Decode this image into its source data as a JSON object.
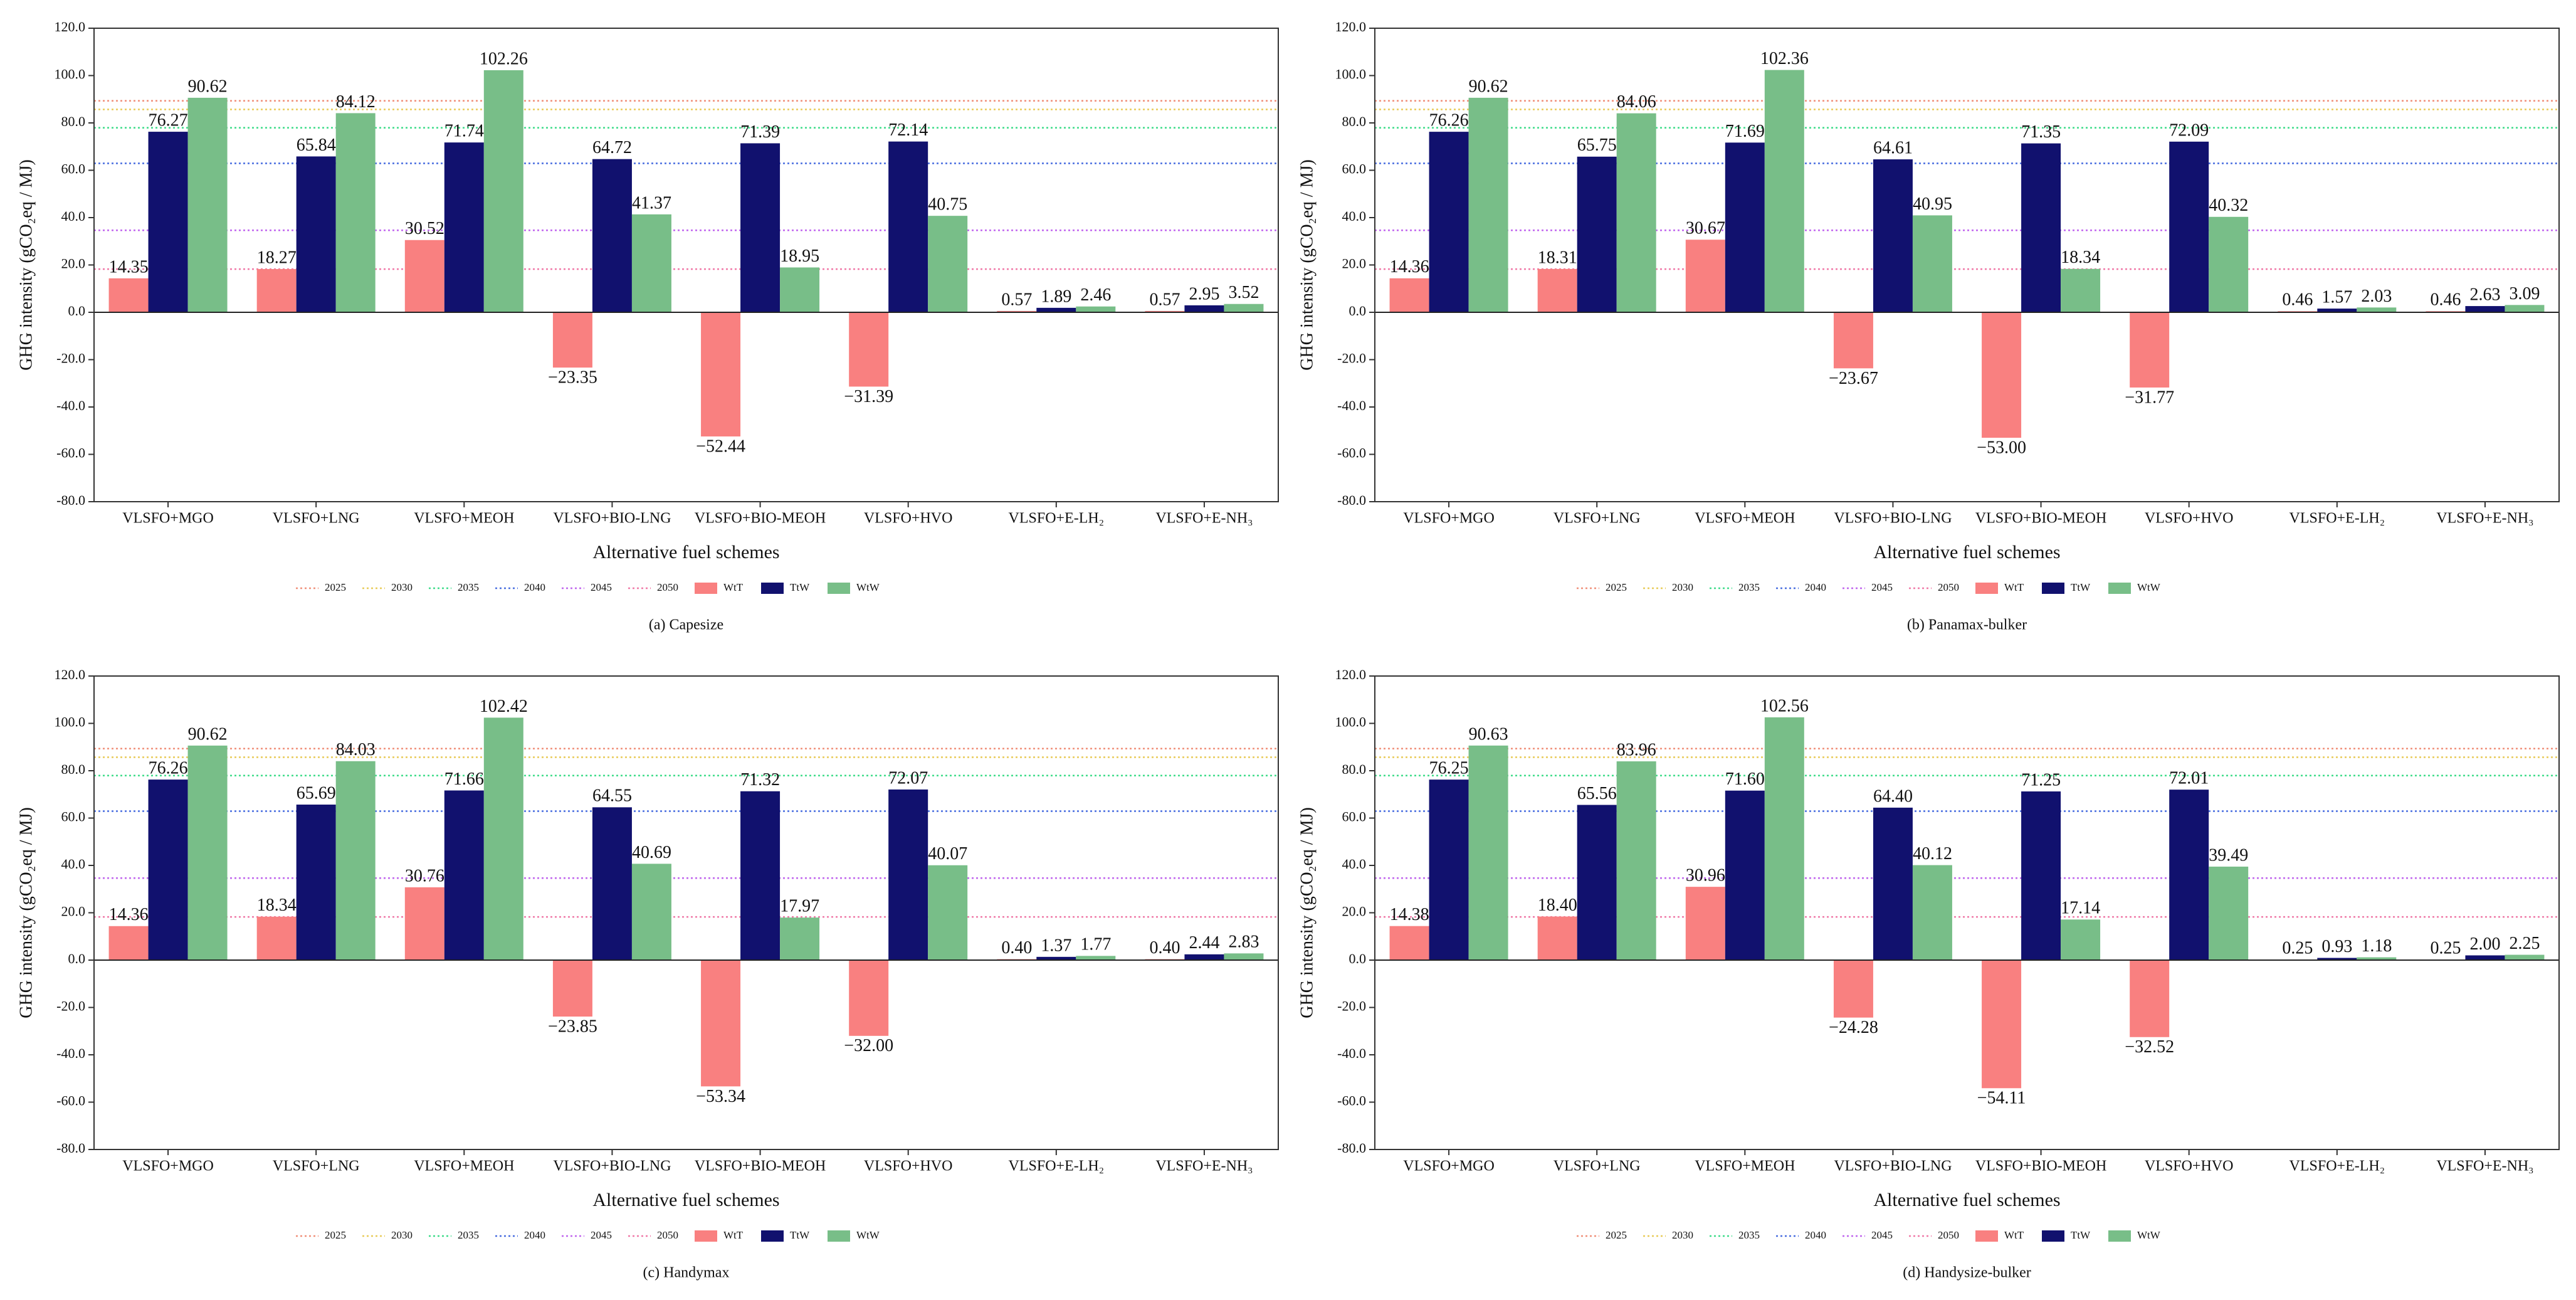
{
  "chart_data": [
    {
      "type": "bar",
      "caption": "(a) Capesize",
      "x_label": "Alternative fuel schemes",
      "y_label": "GHG intensity (gCO₂eq / MJ)",
      "categories": [
        "VLSFO+MGO",
        "VLSFO+LNG",
        "VLSFO+MEOH",
        "VLSFO+BIO-LNG",
        "VLSFO+BIO-MEOH",
        "VLSFO+HVO",
        "VLSFO+E-LH₂",
        "VLSFO+E-NH₃"
      ],
      "ylim": [
        -80,
        120
      ],
      "yticks": [
        {
          "value": -80,
          "label": "-80.0"
        },
        {
          "value": -60,
          "label": "-60.0"
        },
        {
          "value": -40,
          "label": "-40.0"
        },
        {
          "value": -20,
          "label": "-20.0"
        },
        {
          "value": 0,
          "label": "0.0"
        },
        {
          "value": 20,
          "label": "20.0"
        },
        {
          "value": 40,
          "label": "40.0"
        },
        {
          "value": 60,
          "label": "60.0"
        },
        {
          "value": 80,
          "label": "80.0"
        },
        {
          "value": 100,
          "label": "100.0"
        },
        {
          "value": 120,
          "label": "120.0"
        }
      ],
      "ref_lines": [
        {
          "name": "2025",
          "color": "#f0907a",
          "value": 89.34
        },
        {
          "name": "2030",
          "color": "#e8cc5a",
          "value": 85.69
        },
        {
          "name": "2035",
          "color": "#3fdc8a",
          "value": 77.94
        },
        {
          "name": "2040",
          "color": "#4a6fe0",
          "value": 62.9
        },
        {
          "name": "2045",
          "color": "#c066ee",
          "value": 34.64
        },
        {
          "name": "2050",
          "color": "#f07aa8",
          "value": 18.23
        }
      ],
      "series": [
        {
          "name": "WtT",
          "color": "#f98080",
          "values": [
            14.35,
            18.27,
            30.52,
            -23.35,
            -52.44,
            -31.39,
            0.57,
            0.57
          ],
          "value_labels": [
            "14.35",
            "18.27",
            "30.52",
            "−23.35",
            "−52.44",
            "−31.39",
            "0.57",
            "0.57"
          ]
        },
        {
          "name": "TtW",
          "color": "#11116e",
          "values": [
            76.27,
            65.84,
            71.74,
            64.72,
            71.39,
            72.14,
            1.89,
            2.95
          ],
          "value_labels": [
            "76.27",
            "65.84",
            "71.74",
            "64.72",
            "71.39",
            "72.14",
            "1.89",
            "2.95"
          ]
        },
        {
          "name": "WtW",
          "color": "#78be88",
          "values": [
            90.62,
            84.12,
            102.26,
            41.37,
            18.95,
            40.75,
            2.46,
            3.52
          ],
          "value_labels": [
            "90.62",
            "84.12",
            "102.26",
            "41.37",
            "18.95",
            "40.75",
            "2.46",
            "3.52"
          ]
        }
      ]
    },
    {
      "type": "bar",
      "caption": "(b) Panamax-bulker",
      "x_label": "Alternative fuel schemes",
      "y_label": "GHG intensity (gCO₂eq / MJ)",
      "categories": [
        "VLSFO+MGO",
        "VLSFO+LNG",
        "VLSFO+MEOH",
        "VLSFO+BIO-LNG",
        "VLSFO+BIO-MEOH",
        "VLSFO+HVO",
        "VLSFO+E-LH₂",
        "VLSFO+E-NH₃"
      ],
      "ylim": [
        -80,
        120
      ],
      "yticks": [
        {
          "value": -80,
          "label": "-80.0"
        },
        {
          "value": -60,
          "label": "-60.0"
        },
        {
          "value": -40,
          "label": "-40.0"
        },
        {
          "value": -20,
          "label": "-20.0"
        },
        {
          "value": 0,
          "label": "0.0"
        },
        {
          "value": 20,
          "label": "20.0"
        },
        {
          "value": 40,
          "label": "40.0"
        },
        {
          "value": 60,
          "label": "60.0"
        },
        {
          "value": 80,
          "label": "80.0"
        },
        {
          "value": 100,
          "label": "100.0"
        },
        {
          "value": 120,
          "label": "120.0"
        }
      ],
      "ref_lines": [
        {
          "name": "2025",
          "color": "#f0907a",
          "value": 89.34
        },
        {
          "name": "2030",
          "color": "#e8cc5a",
          "value": 85.69
        },
        {
          "name": "2035",
          "color": "#3fdc8a",
          "value": 77.94
        },
        {
          "name": "2040",
          "color": "#4a6fe0",
          "value": 62.9
        },
        {
          "name": "2045",
          "color": "#c066ee",
          "value": 34.64
        },
        {
          "name": "2050",
          "color": "#f07aa8",
          "value": 18.23
        }
      ],
      "series": [
        {
          "name": "WtT",
          "color": "#f98080",
          "values": [
            14.36,
            18.31,
            30.67,
            -23.67,
            -53.0,
            -31.77,
            0.46,
            0.46
          ],
          "value_labels": [
            "14.36",
            "18.31",
            "30.67",
            "−23.67",
            "−53.00",
            "−31.77",
            "0.46",
            "0.46"
          ]
        },
        {
          "name": "TtW",
          "color": "#11116e",
          "values": [
            76.26,
            65.75,
            71.69,
            64.61,
            71.35,
            72.09,
            1.57,
            2.63
          ],
          "value_labels": [
            "76.26",
            "65.75",
            "71.69",
            "64.61",
            "71.35",
            "72.09",
            "1.57",
            "2.63"
          ]
        },
        {
          "name": "WtW",
          "color": "#78be88",
          "values": [
            90.62,
            84.06,
            102.36,
            40.95,
            18.34,
            40.32,
            2.03,
            3.09
          ],
          "value_labels": [
            "90.62",
            "84.06",
            "102.36",
            "40.95",
            "18.34",
            "40.32",
            "2.03",
            "3.09"
          ]
        }
      ]
    },
    {
      "type": "bar",
      "caption": "(c) Handymax",
      "x_label": "Alternative fuel schemes",
      "y_label": "GHG intensity (gCO₂eq / MJ)",
      "categories": [
        "VLSFO+MGO",
        "VLSFO+LNG",
        "VLSFO+MEOH",
        "VLSFO+BIO-LNG",
        "VLSFO+BIO-MEOH",
        "VLSFO+HVO",
        "VLSFO+E-LH₂",
        "VLSFO+E-NH₃"
      ],
      "ylim": [
        -80,
        120
      ],
      "yticks": [
        {
          "value": -80,
          "label": "-80.0"
        },
        {
          "value": -60,
          "label": "-60.0"
        },
        {
          "value": -40,
          "label": "-40.0"
        },
        {
          "value": -20,
          "label": "-20.0"
        },
        {
          "value": 0,
          "label": "0.0"
        },
        {
          "value": 20,
          "label": "20.0"
        },
        {
          "value": 40,
          "label": "40.0"
        },
        {
          "value": 60,
          "label": "60.0"
        },
        {
          "value": 80,
          "label": "80.0"
        },
        {
          "value": 100,
          "label": "100.0"
        },
        {
          "value": 120,
          "label": "120.0"
        }
      ],
      "ref_lines": [
        {
          "name": "2025",
          "color": "#f0907a",
          "value": 89.34
        },
        {
          "name": "2030",
          "color": "#e8cc5a",
          "value": 85.69
        },
        {
          "name": "2035",
          "color": "#3fdc8a",
          "value": 77.94
        },
        {
          "name": "2040",
          "color": "#4a6fe0",
          "value": 62.9
        },
        {
          "name": "2045",
          "color": "#c066ee",
          "value": 34.64
        },
        {
          "name": "2050",
          "color": "#f07aa8",
          "value": 18.23
        }
      ],
      "series": [
        {
          "name": "WtT",
          "color": "#f98080",
          "values": [
            14.36,
            18.34,
            30.76,
            -23.85,
            -53.34,
            -32.0,
            0.4,
            0.4
          ],
          "value_labels": [
            "14.36",
            "18.34",
            "30.76",
            "−23.85",
            "−53.34",
            "−32.00",
            "0.40",
            "0.40"
          ]
        },
        {
          "name": "TtW",
          "color": "#11116e",
          "values": [
            76.26,
            65.69,
            71.66,
            64.55,
            71.32,
            72.07,
            1.37,
            2.44
          ],
          "value_labels": [
            "76.26",
            "65.69",
            "71.66",
            "64.55",
            "71.32",
            "72.07",
            "1.37",
            "2.44"
          ]
        },
        {
          "name": "WtW",
          "color": "#78be88",
          "values": [
            90.62,
            84.03,
            102.42,
            40.69,
            17.97,
            40.07,
            1.77,
            2.83
          ],
          "value_labels": [
            "90.62",
            "84.03",
            "102.42",
            "40.69",
            "17.97",
            "40.07",
            "1.77",
            "2.83"
          ]
        }
      ]
    },
    {
      "type": "bar",
      "caption": "(d) Handysize-bulker",
      "x_label": "Alternative fuel schemes",
      "y_label": "GHG intensity (gCO₂eq / MJ)",
      "categories": [
        "VLSFO+MGO",
        "VLSFO+LNG",
        "VLSFO+MEOH",
        "VLSFO+BIO-LNG",
        "VLSFO+BIO-MEOH",
        "VLSFO+HVO",
        "VLSFO+E-LH₂",
        "VLSFO+E-NH₃"
      ],
      "ylim": [
        -80,
        120
      ],
      "yticks": [
        {
          "value": -80,
          "label": "-80.0"
        },
        {
          "value": -60,
          "label": "-60.0"
        },
        {
          "value": -40,
          "label": "-40.0"
        },
        {
          "value": -20,
          "label": "-20.0"
        },
        {
          "value": 0,
          "label": "0.0"
        },
        {
          "value": 20,
          "label": "20.0"
        },
        {
          "value": 40,
          "label": "40.0"
        },
        {
          "value": 60,
          "label": "60.0"
        },
        {
          "value": 80,
          "label": "80.0"
        },
        {
          "value": 100,
          "label": "100.0"
        },
        {
          "value": 120,
          "label": "120.0"
        }
      ],
      "ref_lines": [
        {
          "name": "2025",
          "color": "#f0907a",
          "value": 89.34
        },
        {
          "name": "2030",
          "color": "#e8cc5a",
          "value": 85.69
        },
        {
          "name": "2035",
          "color": "#3fdc8a",
          "value": 77.94
        },
        {
          "name": "2040",
          "color": "#4a6fe0",
          "value": 62.9
        },
        {
          "name": "2045",
          "color": "#c066ee",
          "value": 34.64
        },
        {
          "name": "2050",
          "color": "#f07aa8",
          "value": 18.23
        }
      ],
      "series": [
        {
          "name": "WtT",
          "color": "#f98080",
          "values": [
            14.38,
            18.4,
            30.96,
            -24.28,
            -54.11,
            -32.52,
            0.25,
            0.25
          ],
          "value_labels": [
            "14.38",
            "18.40",
            "30.96",
            "−24.28",
            "−54.11",
            "−32.52",
            "0.25",
            "0.25"
          ]
        },
        {
          "name": "TtW",
          "color": "#11116e",
          "values": [
            76.25,
            65.56,
            71.6,
            64.4,
            71.25,
            72.01,
            0.93,
            2.0
          ],
          "value_labels": [
            "76.25",
            "65.56",
            "71.60",
            "64.40",
            "71.25",
            "72.01",
            "0.93",
            "2.00"
          ]
        },
        {
          "name": "WtW",
          "color": "#78be88",
          "values": [
            90.63,
            83.96,
            102.56,
            40.12,
            17.14,
            39.49,
            1.18,
            2.25
          ],
          "value_labels": [
            "90.63",
            "83.96",
            "102.56",
            "40.12",
            "17.14",
            "39.49",
            "1.18",
            "2.25"
          ]
        }
      ]
    }
  ]
}
